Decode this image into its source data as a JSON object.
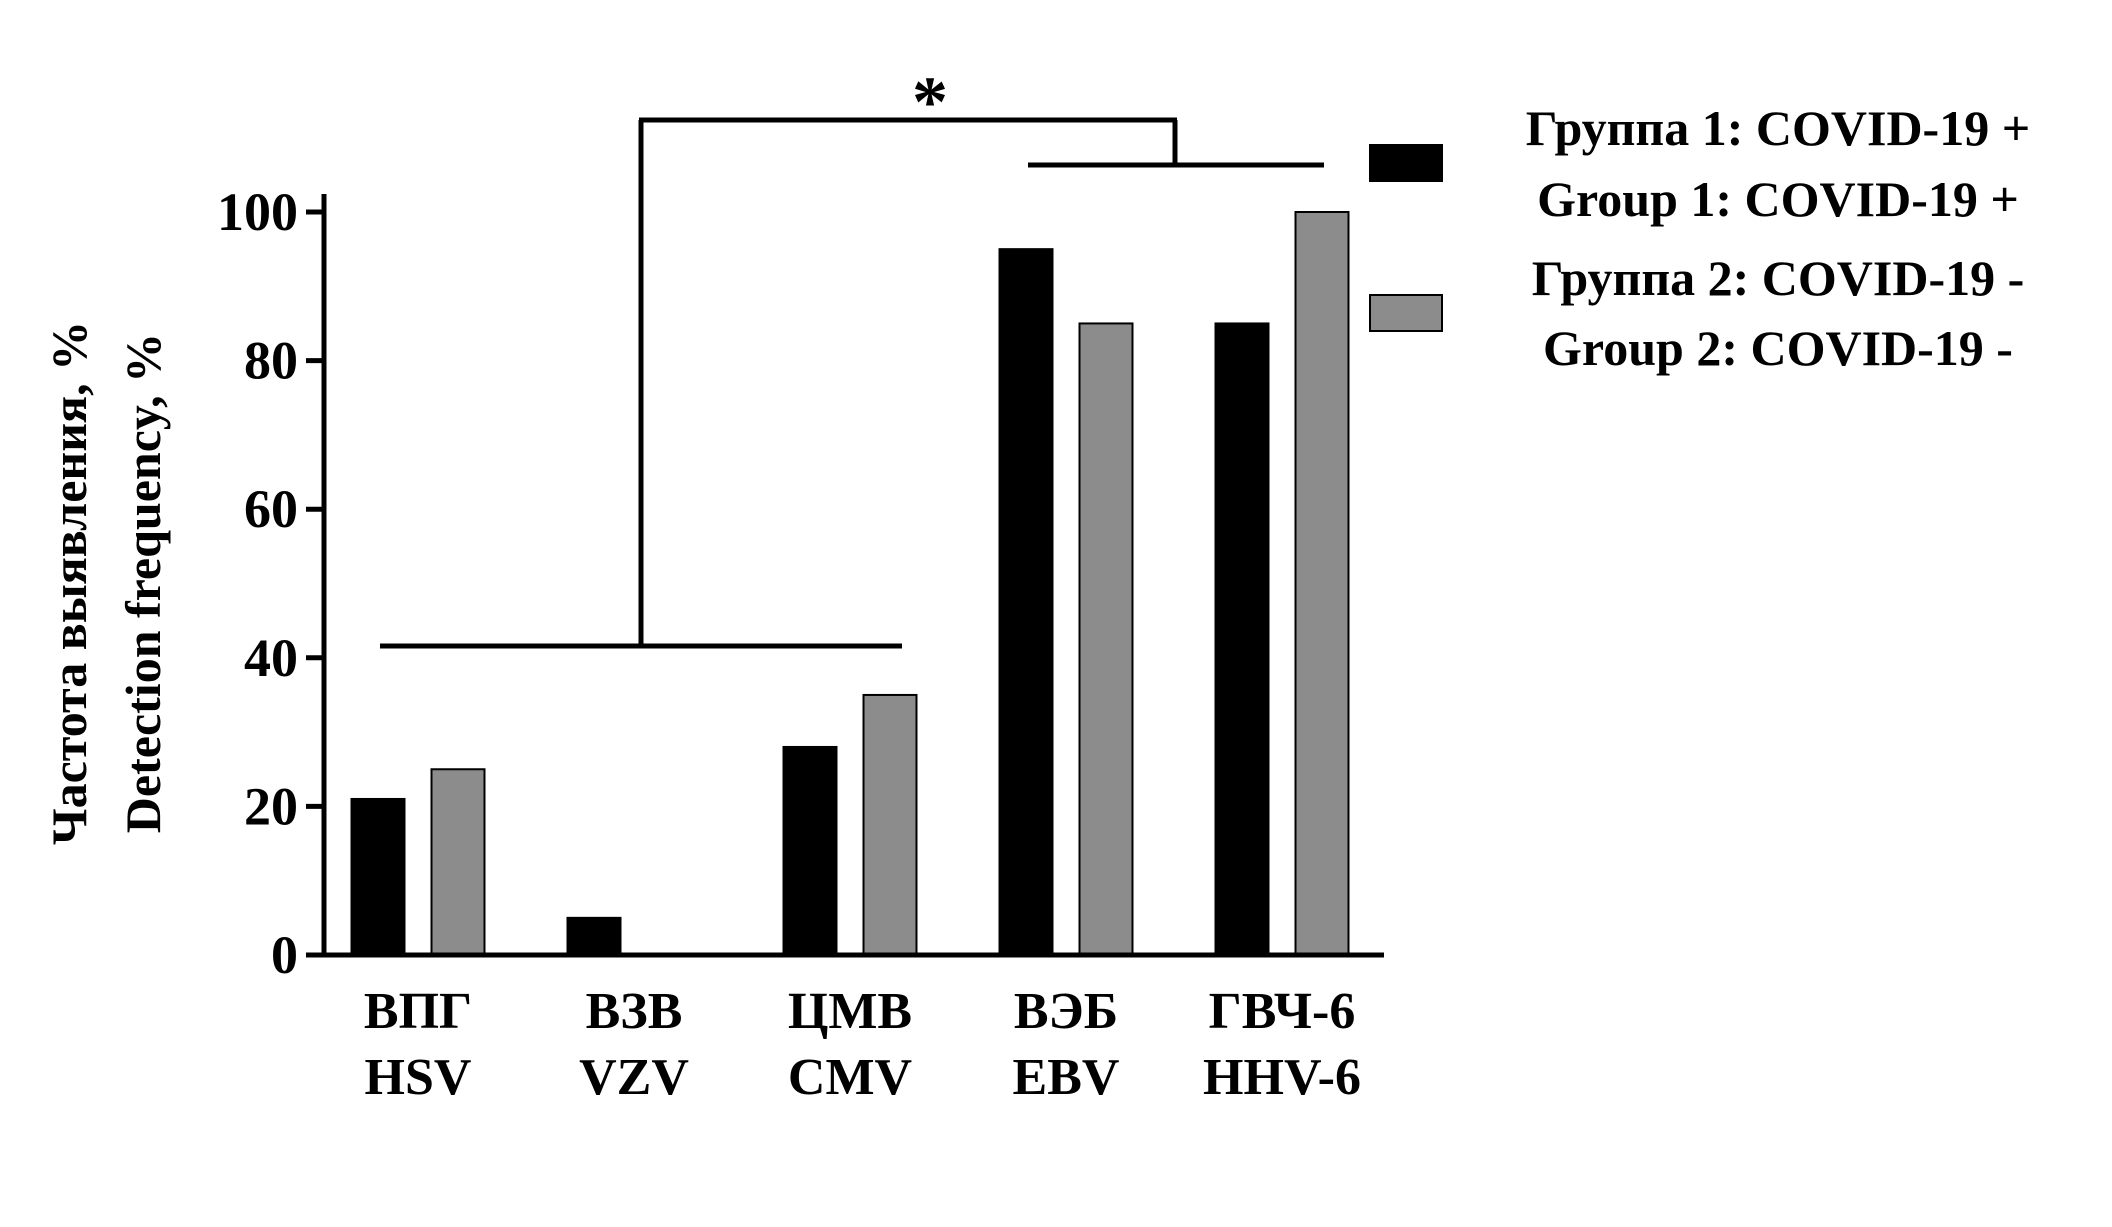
{
  "chart_data": {
    "type": "bar",
    "ylabel": [
      "Частота выявления, %",
      "Detection frequency, %"
    ],
    "ylim": [
      0,
      100
    ],
    "yticks": [
      0,
      20,
      40,
      60,
      80,
      100
    ],
    "categories": [
      [
        "ВПГ",
        "HSV"
      ],
      [
        "ВЗВ",
        "VZV"
      ],
      [
        "ЦМВ",
        "CMV"
      ],
      [
        "ВЭБ",
        "EBV"
      ],
      [
        "ГВЧ-6",
        "HHV-6"
      ]
    ],
    "series": [
      {
        "name": [
          "Группа 1: COVID-19 +",
          "Group 1: COVID-19 +"
        ],
        "color": "#000000",
        "values": [
          21,
          5,
          28,
          95,
          85
        ]
      },
      {
        "name": [
          "Группа 2: COVID-19 -",
          "Group 2: COVID-19 -"
        ],
        "color": "#8c8c8c",
        "values": [
          25,
          0,
          35,
          85,
          100
        ]
      }
    ],
    "legend_position": "top-right",
    "grid": false,
    "annotation": {
      "text": "*",
      "groups_compared": [
        [
          "ВПГ",
          "ВЗВ",
          "ЦМВ"
        ],
        [
          "ВЭБ",
          "ГВЧ-6"
        ]
      ]
    }
  }
}
